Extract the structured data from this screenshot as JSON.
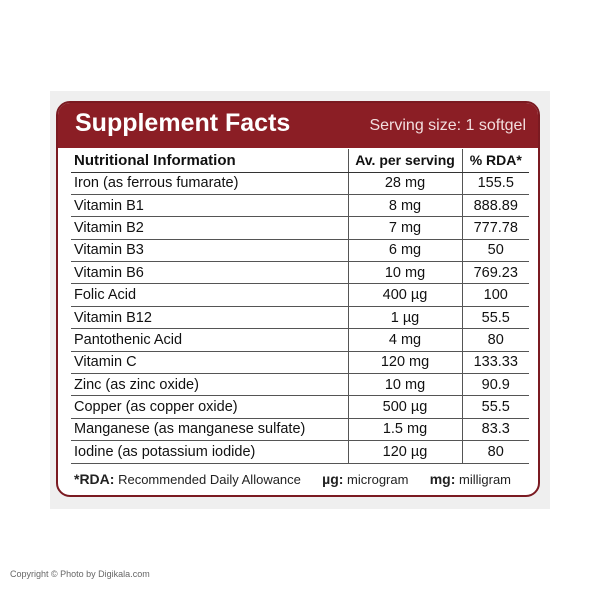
{
  "header": {
    "title": "Supplement Facts",
    "serving": "Serving size: 1 softgel"
  },
  "table": {
    "columns": [
      "Nutritional Information",
      "Av. per serving",
      "% RDA*"
    ],
    "rows": [
      {
        "name": "Iron (as ferrous fumarate)",
        "amount": "28 mg",
        "rda": "155.5"
      },
      {
        "name": "Vitamin B1",
        "amount": "8 mg",
        "rda": "888.89"
      },
      {
        "name": "Vitamin B2",
        "amount": "7 mg",
        "rda": "777.78"
      },
      {
        "name": "Vitamin B3",
        "amount": "6 mg",
        "rda": "50"
      },
      {
        "name": "Vitamin B6",
        "amount": "10 mg",
        "rda": "769.23"
      },
      {
        "name": "Folic Acid",
        "amount": "400 µg",
        "rda": "100"
      },
      {
        "name": "Vitamin B12",
        "amount": "1 µg",
        "rda": "55.5"
      },
      {
        "name": "Pantothenic Acid",
        "amount": "4 mg",
        "rda": "80"
      },
      {
        "name": "Vitamin C",
        "amount": "120 mg",
        "rda": "133.33"
      },
      {
        "name": "Zinc (as zinc oxide)",
        "amount": "10 mg",
        "rda": "90.9"
      },
      {
        "name": "Copper (as copper oxide)",
        "amount": "500 µg",
        "rda": "55.5"
      },
      {
        "name": "Manganese (as manganese sulfate)",
        "amount": "1.5 mg",
        "rda": "83.3"
      },
      {
        "name": "Iodine (as potassium iodide)",
        "amount": "120 µg",
        "rda": "80"
      }
    ]
  },
  "footnote": {
    "rda_key": "*RDA:",
    "rda_text": "Recommended Daily Allowance",
    "ug_key": "µg:",
    "ug_text": "microgram",
    "mg_key": "mg:",
    "mg_text": "milligram"
  },
  "copyright": "Copyright © Photo by Digikala.com",
  "colors": {
    "header_bg": "#8b1e25",
    "border": "#7a1a21"
  }
}
